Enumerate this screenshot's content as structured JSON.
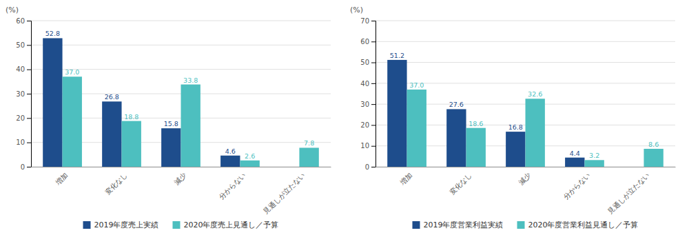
{
  "chart_data": [
    {
      "type": "bar",
      "categories": [
        "増加",
        "変化なし",
        "減少",
        "分からない",
        "見通しが立たない"
      ],
      "series": [
        {
          "name": "2019年度売上実績",
          "color": "#1e4d8c",
          "values": [
            52.8,
            26.8,
            15.8,
            4.6,
            0
          ],
          "value_labels": [
            "52.8",
            "26.8",
            "15.8",
            "4.6",
            null
          ]
        },
        {
          "name": "2020年度売上見通し／予算",
          "color": "#4dbfbf",
          "values": [
            37.0,
            18.8,
            33.8,
            2.6,
            7.8
          ],
          "value_labels": [
            "37.0",
            "18.8",
            "33.8",
            "2.6",
            "7.8"
          ]
        }
      ],
      "ylabel": "(%)",
      "ylim": [
        0,
        60
      ],
      "yticks": [
        0,
        10,
        20,
        30,
        40,
        50,
        60
      ],
      "grid": true,
      "data_labels": true,
      "legend": "bottom"
    },
    {
      "type": "bar",
      "categories": [
        "増加",
        "変化なし",
        "減少",
        "分からない",
        "見通しが立たない"
      ],
      "series": [
        {
          "name": "2019年度営業利益実績",
          "color": "#1e4d8c",
          "values": [
            51.2,
            27.6,
            16.8,
            4.4,
            0
          ],
          "value_labels": [
            "51.2",
            "27.6",
            "16.8",
            "4.4",
            null
          ]
        },
        {
          "name": "2020年度営業利益見通し／予算",
          "color": "#4dbfbf",
          "values": [
            37.0,
            18.6,
            32.6,
            3.2,
            8.6
          ],
          "value_labels": [
            "37.0",
            "18.6",
            "32.6",
            "3.2",
            "8.6"
          ]
        }
      ],
      "ylabel": "(%)",
      "ylim": [
        0,
        70
      ],
      "yticks": [
        0,
        10,
        20,
        30,
        40,
        50,
        60,
        70
      ],
      "grid": true,
      "data_labels": true,
      "legend": "bottom"
    }
  ]
}
